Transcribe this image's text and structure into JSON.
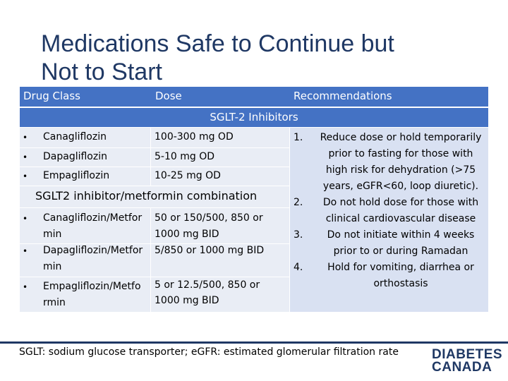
{
  "title": {
    "line1": "Medications Safe to Continue but",
    "line2": "Not to Start"
  },
  "table": {
    "headers": {
      "drug_class": "Drug Class",
      "dose": "Dose",
      "recommendations": "Recommendations"
    },
    "section_title": "SGLT-2 Inhibitors",
    "bullet_glyph": "•",
    "drugs": [
      {
        "name": "Canagliflozin",
        "dose": "100-300 mg OD"
      },
      {
        "name": "Dapagliflozin",
        "dose": "5-10 mg OD"
      },
      {
        "name": "Empagliflozin",
        "dose": "10-25 mg OD"
      }
    ],
    "combo_title": "SGLT2 inhibitor/metformin combination",
    "combos": [
      {
        "name_l1": "Canagliflozin/Metfor",
        "name_l2": "min",
        "dose_l1": "50 or 150/500, 850 or",
        "dose_l2": "1000 mg BID"
      },
      {
        "name_l1": "Dapagliflozin/Metfor",
        "name_l2": "min",
        "dose_l1": "5/850 or 1000 mg BID",
        "dose_l2": ""
      },
      {
        "name_l1": "Empagliflozin/Metfo",
        "name_l2": "rmin",
        "dose_l1": "5 or 12.5/500, 850 or",
        "dose_l2": "1000 mg BID"
      }
    ],
    "recommendations": [
      {
        "num": "1.",
        "lines": [
          "Reduce dose or hold temporarily",
          "prior to fasting for those with",
          "high risk for dehydration (>75",
          "years, eGFR<60, loop diuretic)."
        ]
      },
      {
        "num": "2.",
        "lines": [
          "Do not  hold dose for those with",
          "clinical cardiovascular disease"
        ]
      },
      {
        "num": "3.",
        "lines": [
          "Do not initiate within 4 weeks",
          "prior to or during Ramadan"
        ]
      },
      {
        "num": "4.",
        "lines": [
          "Hold for vomiting, diarrhea or",
          "orthostasis"
        ]
      }
    ]
  },
  "footnote": "SGLT: sodium glucose transporter; eGFR: estimated glomerular filtration rate",
  "logo": {
    "line1": "DIABETES",
    "line2": "CANADA"
  },
  "colors": {
    "header_bg": "#4472c4",
    "title": "#1f3864",
    "cell_light": "#e9edf5",
    "cell_dark": "#d9e1f2"
  }
}
